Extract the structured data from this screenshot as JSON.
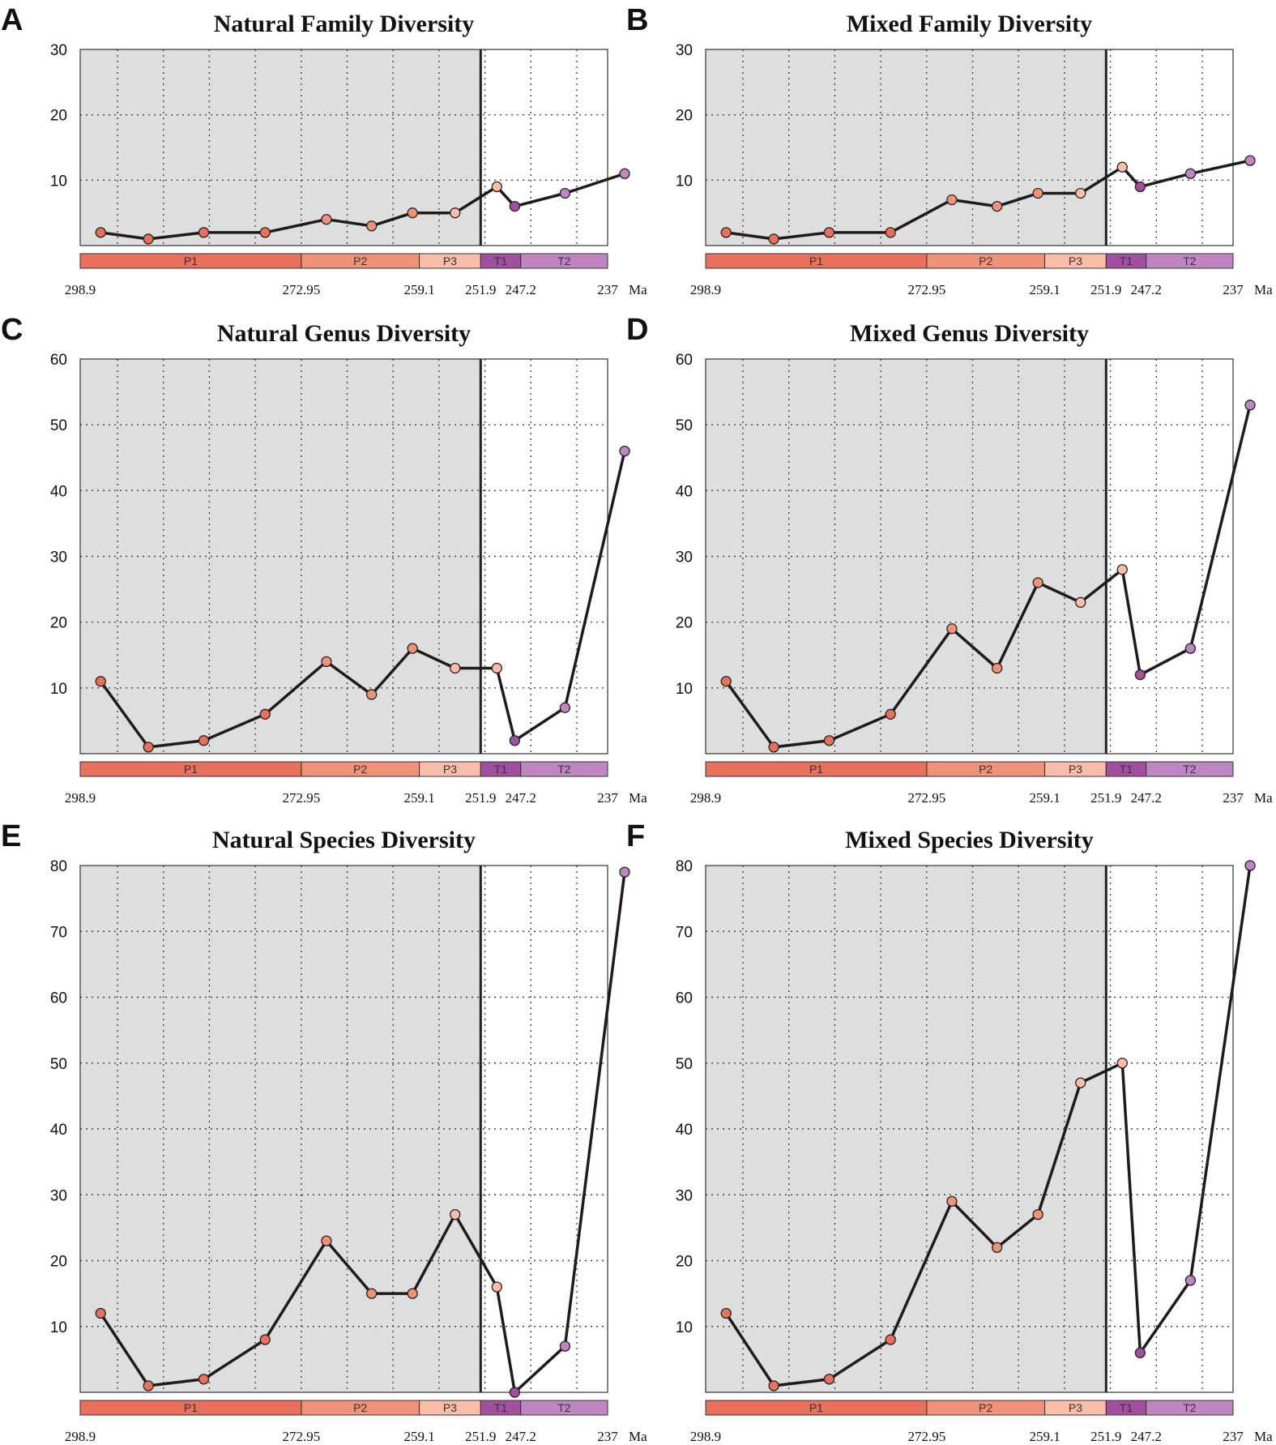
{
  "colors": {
    "permian_bg": "#dddfdf",
    "line": "#221a1a",
    "P1": "#e8705c",
    "P2": "#f09278",
    "P3": "#f9bdaa",
    "T1": "#a34f9f",
    "T2": "#bf86c2"
  },
  "shared": {
    "x_tick_labels": [
      "298.9",
      "272.95",
      "259.1",
      "251.9",
      "247.2",
      "237"
    ],
    "x_unit": "Ma",
    "periods": [
      {
        "label": "P1",
        "start": 298.9,
        "end": 272.95
      },
      {
        "label": "P2",
        "start": 272.95,
        "end": 259.1
      },
      {
        "label": "P3",
        "start": 259.1,
        "end": 251.9
      },
      {
        "label": "T1",
        "start": 251.9,
        "end": 247.2
      },
      {
        "label": "T2",
        "start": 247.2,
        "end": 237
      }
    ],
    "boundary": 251.9
  },
  "chart_data": [
    {
      "letter": "A",
      "type": "line",
      "title": "Natural Family Diversity",
      "ylim": [
        0,
        30
      ],
      "yticks": [
        10,
        20,
        30
      ],
      "grid": true,
      "x": [
        296.5,
        290.9,
        284.4,
        277.2,
        270.0,
        264.7,
        259.9,
        254.9,
        250.0,
        247.9,
        242.0,
        235.0
      ],
      "values": [
        2,
        1,
        2,
        2,
        4,
        3,
        5,
        5,
        9,
        6,
        8,
        11
      ],
      "point_colors": [
        "#e8705c",
        "#e8705c",
        "#e8705c",
        "#e8705c",
        "#f09278",
        "#f09278",
        "#f09278",
        "#f9bdaa",
        "#f9bdaa",
        "#a34f9f",
        "#bf86c2",
        "#bf86c2"
      ]
    },
    {
      "letter": "B",
      "type": "line",
      "title": "Mixed Family Diversity",
      "ylim": [
        0,
        30
      ],
      "yticks": [
        10,
        20,
        30
      ],
      "grid": true,
      "x": [
        296.5,
        290.9,
        284.4,
        277.2,
        270.0,
        264.7,
        259.9,
        254.9,
        250.0,
        247.9,
        242.0,
        235.0
      ],
      "values": [
        2,
        1,
        2,
        2,
        7,
        6,
        8,
        8,
        12,
        9,
        11,
        13
      ],
      "point_colors": [
        "#e8705c",
        "#e8705c",
        "#e8705c",
        "#e8705c",
        "#f09278",
        "#f09278",
        "#f09278",
        "#f9bdaa",
        "#f9bdaa",
        "#a34f9f",
        "#bf86c2",
        "#bf86c2"
      ]
    },
    {
      "letter": "C",
      "type": "line",
      "title": "Natural Genus Diversity",
      "ylim": [
        0,
        60
      ],
      "yticks": [
        10,
        20,
        30,
        40,
        50,
        60
      ],
      "grid": true,
      "x": [
        296.5,
        290.9,
        284.4,
        277.2,
        270.0,
        264.7,
        259.9,
        254.9,
        250.0,
        247.9,
        242.0,
        235.0
      ],
      "values": [
        11,
        1,
        2,
        6,
        14,
        9,
        16,
        13,
        13,
        2,
        7,
        46
      ],
      "point_colors": [
        "#e8705c",
        "#e8705c",
        "#e8705c",
        "#e8705c",
        "#f09278",
        "#f09278",
        "#f09278",
        "#f9bdaa",
        "#f9bdaa",
        "#a34f9f",
        "#bf86c2",
        "#bf86c2"
      ]
    },
    {
      "letter": "D",
      "type": "line",
      "title": "Mixed Genus Diversity",
      "ylim": [
        0,
        60
      ],
      "yticks": [
        10,
        20,
        30,
        40,
        50,
        60
      ],
      "grid": true,
      "x": [
        296.5,
        290.9,
        284.4,
        277.2,
        270.0,
        264.7,
        259.9,
        254.9,
        250.0,
        247.9,
        242.0,
        235.0
      ],
      "values": [
        11,
        1,
        2,
        6,
        19,
        13,
        26,
        23,
        28,
        12,
        16,
        53
      ],
      "point_colors": [
        "#e8705c",
        "#e8705c",
        "#e8705c",
        "#e8705c",
        "#f09278",
        "#f09278",
        "#f09278",
        "#f9bdaa",
        "#f9bdaa",
        "#a34f9f",
        "#bf86c2",
        "#bf86c2"
      ]
    },
    {
      "letter": "E",
      "type": "line",
      "title": "Natural Species Diversity",
      "ylim": [
        0,
        80
      ],
      "yticks": [
        10,
        20,
        30,
        40,
        50,
        60,
        70,
        80
      ],
      "grid": true,
      "x": [
        296.5,
        290.9,
        284.4,
        277.2,
        270.0,
        264.7,
        259.9,
        254.9,
        250.0,
        247.9,
        242.0,
        235.0
      ],
      "values": [
        12,
        1,
        2,
        8,
        23,
        15,
        15,
        27,
        16,
        0,
        7,
        79
      ],
      "point_colors": [
        "#e8705c",
        "#e8705c",
        "#e8705c",
        "#e8705c",
        "#f09278",
        "#f09278",
        "#f09278",
        "#f9bdaa",
        "#f9bdaa",
        "#a34f9f",
        "#bf86c2",
        "#bf86c2"
      ]
    },
    {
      "letter": "F",
      "type": "line",
      "title": "Mixed Species Diversity",
      "ylim": [
        0,
        80
      ],
      "yticks": [
        10,
        20,
        30,
        40,
        50,
        60,
        70,
        80
      ],
      "grid": true,
      "x": [
        296.5,
        290.9,
        284.4,
        277.2,
        270.0,
        264.7,
        259.9,
        254.9,
        250.0,
        247.9,
        242.0,
        235.0
      ],
      "values": [
        12,
        1,
        2,
        8,
        29,
        22,
        27,
        47,
        50,
        6,
        17,
        80
      ],
      "point_colors": [
        "#e8705c",
        "#e8705c",
        "#e8705c",
        "#e8705c",
        "#f09278",
        "#f09278",
        "#f09278",
        "#f9bdaa",
        "#f9bdaa",
        "#a34f9f",
        "#bf86c2",
        "#bf86c2"
      ]
    }
  ]
}
